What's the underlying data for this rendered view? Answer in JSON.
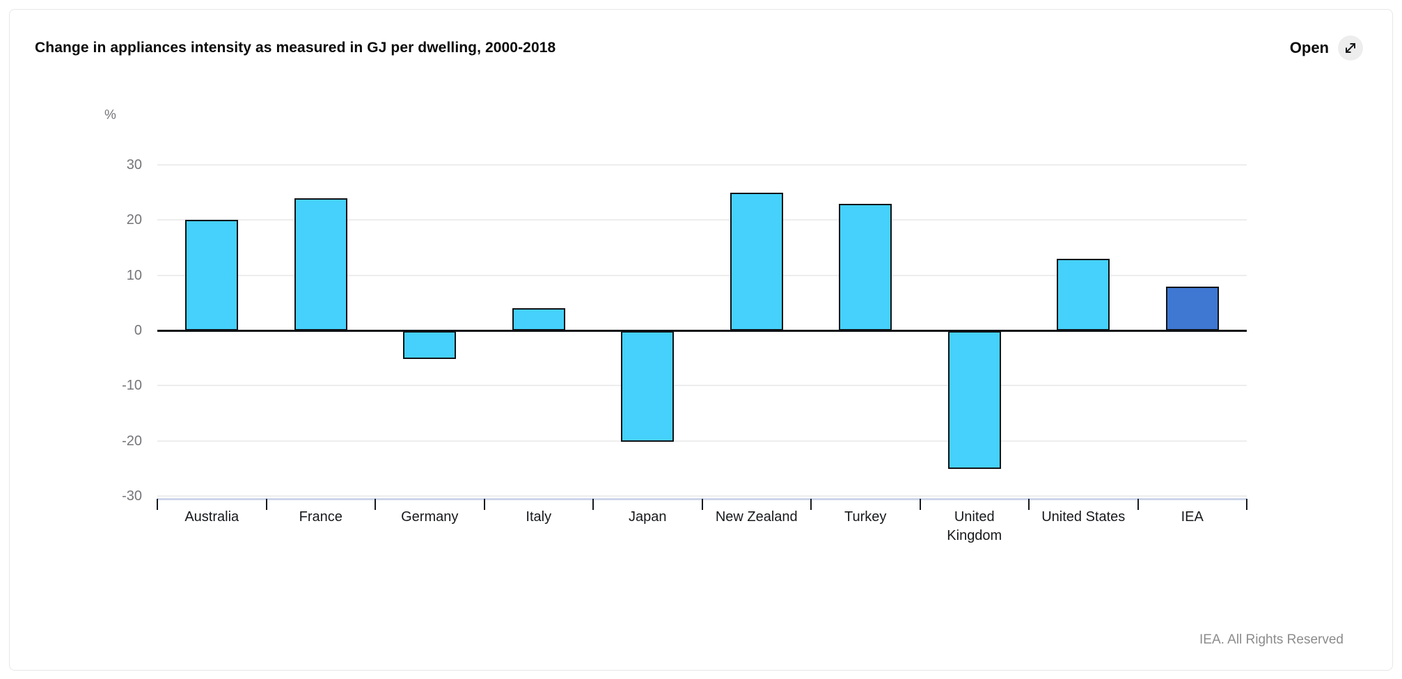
{
  "header": {
    "title": "Change in appliances intensity as measured in GJ per dwelling, 2000-2018",
    "open_label": "Open"
  },
  "footer": {
    "copyright": "IEA. All Rights Reserved"
  },
  "chart_data": {
    "type": "bar",
    "title": "Change in appliances intensity as measured in GJ per dwelling, 2000-2018",
    "unit_label": "%",
    "xlabel": "",
    "ylabel": "%",
    "categories": [
      "Australia",
      "France",
      "Germany",
      "Italy",
      "Japan",
      "New Zealand",
      "Turkey",
      "United Kingdom",
      "United States",
      "IEA"
    ],
    "category_lines": [
      [
        "Australia"
      ],
      [
        "France"
      ],
      [
        "Germany"
      ],
      [
        "Italy"
      ],
      [
        "Japan"
      ],
      [
        "New Zealand"
      ],
      [
        "Turkey"
      ],
      [
        "United",
        "Kingdom"
      ],
      [
        "United States"
      ],
      [
        "IEA"
      ]
    ],
    "values": [
      20,
      24,
      -5,
      4,
      -20,
      25,
      23,
      -25,
      13,
      8
    ],
    "ylim": [
      -30,
      30
    ],
    "yticks": [
      30,
      20,
      10,
      0,
      -10,
      -20,
      -30
    ],
    "grid": true,
    "legend_position": "none",
    "bar_color": "#45d1fb",
    "highlight_color": "#3e78d2",
    "highlight_index": 9,
    "bar_border_color": "#0f1216",
    "xaxis_line_color": "#ccd6eb",
    "gridline_color": "#ededed"
  }
}
